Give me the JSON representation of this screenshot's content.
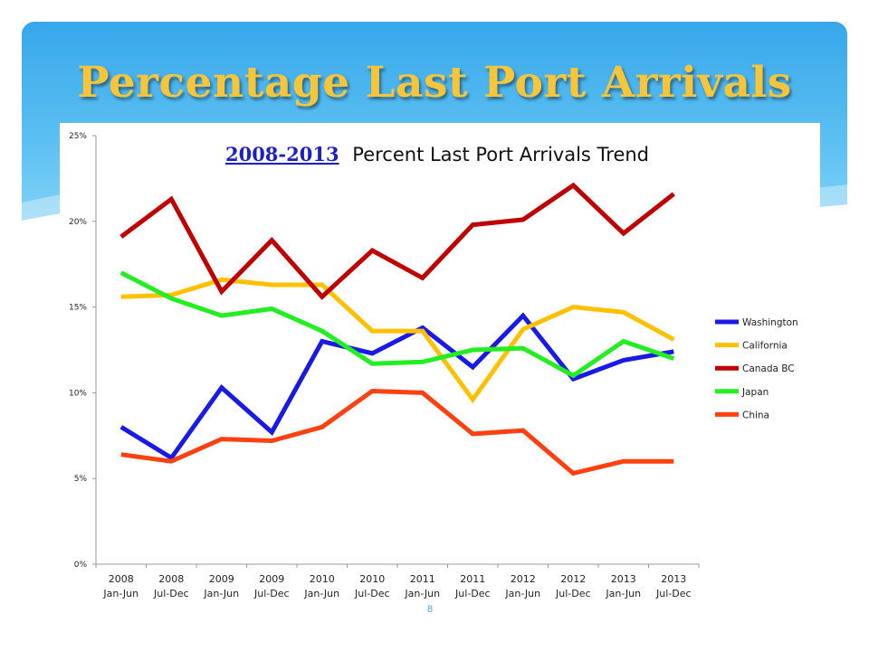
{
  "slide": {
    "title": "Percentage Last Port Arrivals",
    "page_number": "8"
  },
  "chart_data": {
    "type": "line",
    "title_highlight": "2008-2013",
    "title_rest": "Percent Last Port Arrivals Trend",
    "categories": [
      [
        "2008",
        "Jan-Jun"
      ],
      [
        "2008",
        "Jul-Dec"
      ],
      [
        "2009",
        "Jan-Jun"
      ],
      [
        "2009",
        "Jul-Dec"
      ],
      [
        "2010",
        "Jan-Jun"
      ],
      [
        "2010",
        "Jul-Dec"
      ],
      [
        "2011",
        "Jan-Jun"
      ],
      [
        "2011",
        "Jul-Dec"
      ],
      [
        "2012",
        "Jan-Jun"
      ],
      [
        "2012",
        "Jul-Dec"
      ],
      [
        "2013",
        "Jan-Jun"
      ],
      [
        "2013",
        "Jul-Dec"
      ]
    ],
    "ylim": [
      0,
      25
    ],
    "yticks": [
      0,
      5,
      10,
      15,
      20,
      25
    ],
    "ytick_labels": [
      "0%",
      "5%",
      "10%",
      "15%",
      "20%",
      "25%"
    ],
    "grid": false,
    "legend_position": "right",
    "series": [
      {
        "name": "Washington",
        "color": "#1a1ae6",
        "values": [
          8.0,
          6.2,
          10.3,
          7.7,
          13.0,
          12.3,
          13.8,
          11.5,
          14.5,
          10.8,
          11.9,
          12.4
        ]
      },
      {
        "name": "California",
        "color": "#ffc000",
        "values": [
          15.6,
          15.7,
          16.6,
          16.3,
          16.3,
          13.6,
          13.6,
          9.6,
          13.7,
          15.0,
          14.7,
          13.1
        ]
      },
      {
        "name": "Canada BC",
        "color": "#c00000",
        "values": [
          19.1,
          21.3,
          15.9,
          18.9,
          15.6,
          18.3,
          16.7,
          19.8,
          20.1,
          22.1,
          19.3,
          21.6
        ]
      },
      {
        "name": "Japan",
        "color": "#22ee22",
        "values": [
          17.0,
          15.5,
          14.5,
          14.9,
          13.6,
          11.7,
          11.8,
          12.5,
          12.6,
          11.0,
          13.0,
          12.0
        ]
      },
      {
        "name": "China",
        "color": "#ff4010",
        "values": [
          6.4,
          6.0,
          7.3,
          7.2,
          8.0,
          10.1,
          10.0,
          7.6,
          7.8,
          5.3,
          6.0,
          6.0
        ]
      }
    ]
  }
}
